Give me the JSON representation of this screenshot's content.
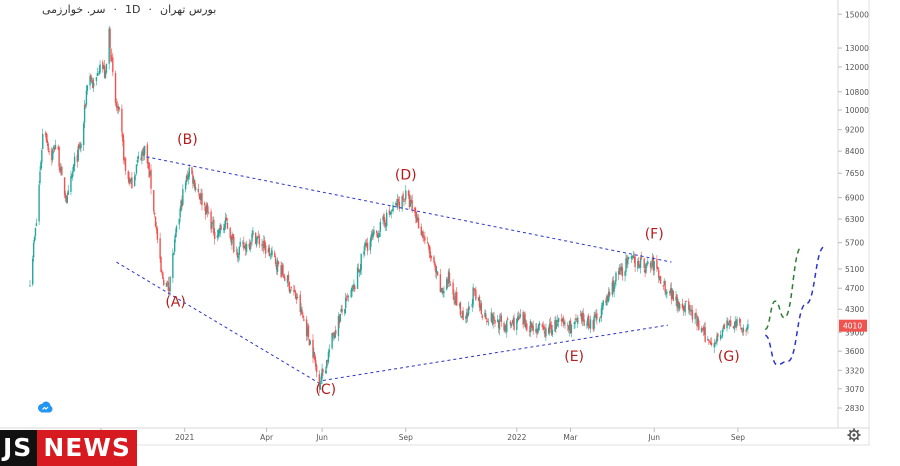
{
  "header": {
    "symbol_name": "سر. خوارزمی",
    "interval": "1D",
    "exchange": "بورس تهران"
  },
  "logo": {
    "part1": "JS",
    "part2": "NEWS"
  },
  "colors": {
    "up": "#26a69a",
    "down": "#ef5350",
    "trend": "#2b35c9",
    "projection_up": "#2e7d32",
    "label": "#b71c1c",
    "price_tag": "#ef5350"
  },
  "chart_data": {
    "type": "candlestick",
    "title": "",
    "xlabel": "",
    "ylabel": "",
    "y_scale": "log",
    "ylim": [
      2600,
      15800
    ],
    "xlim": [
      "2020-07-15",
      "2022-12-20"
    ],
    "y_ticks": [
      15000,
      13000,
      12000,
      10800,
      10000,
      9200,
      8400,
      7650,
      6900,
      6300,
      5700,
      5100,
      4700,
      4300,
      3900,
      3600,
      3320,
      3070,
      2830
    ],
    "x_ticks": [
      {
        "date": "2020-10-01",
        "label": "Oct"
      },
      {
        "date": "2021-01-01",
        "label": "2021"
      },
      {
        "date": "2021-04-01",
        "label": "Apr"
      },
      {
        "date": "2021-06-01",
        "label": "Jun"
      },
      {
        "date": "2021-09-01",
        "label": "Sep"
      },
      {
        "date": "2022-01-01",
        "label": "2022"
      },
      {
        "date": "2022-03-01",
        "label": "Mar"
      },
      {
        "date": "2022-06-01",
        "label": "Jun"
      },
      {
        "date": "2022-09-01",
        "label": "Sep"
      }
    ],
    "last_price": 4010,
    "price_path": [
      [
        "2020-07-15",
        4900
      ],
      [
        "2020-07-22",
        6200
      ],
      [
        "2020-07-30",
        9500
      ],
      [
        "2020-08-07",
        8100
      ],
      [
        "2020-08-13",
        8800
      ],
      [
        "2020-08-19",
        7400
      ],
      [
        "2020-08-25",
        6800
      ],
      [
        "2020-09-02",
        8000
      ],
      [
        "2020-09-10",
        8700
      ],
      [
        "2020-09-17",
        11800
      ],
      [
        "2020-09-24",
        10900
      ],
      [
        "2020-09-30",
        12400
      ],
      [
        "2020-10-06",
        11500
      ],
      [
        "2020-10-10",
        14000
      ],
      [
        "2020-10-16",
        10400
      ],
      [
        "2020-10-22",
        9600
      ],
      [
        "2020-10-28",
        7700
      ],
      [
        "2020-11-03",
        7300
      ],
      [
        "2020-11-12",
        8200
      ],
      [
        "2020-11-18",
        8500
      ],
      [
        "2020-11-24",
        7500
      ],
      [
        "2020-11-30",
        6200
      ],
      [
        "2020-12-06",
        5000
      ],
      [
        "2020-12-14",
        4700
      ],
      [
        "2020-12-22",
        5800
      ],
      [
        "2020-12-30",
        7000
      ],
      [
        "2021-01-06",
        7800
      ],
      [
        "2021-01-14",
        7200
      ],
      [
        "2021-01-24",
        6600
      ],
      [
        "2021-02-04",
        5900
      ],
      [
        "2021-02-16",
        6200
      ],
      [
        "2021-02-26",
        5500
      ],
      [
        "2021-03-08",
        5600
      ],
      [
        "2021-03-18",
        5900
      ],
      [
        "2021-03-29",
        5600
      ],
      [
        "2021-04-10",
        5300
      ],
      [
        "2021-04-22",
        4900
      ],
      [
        "2021-05-04",
        4500
      ],
      [
        "2021-05-14",
        4000
      ],
      [
        "2021-05-22",
        3600
      ],
      [
        "2021-05-28",
        3150
      ],
      [
        "2021-06-05",
        3400
      ],
      [
        "2021-06-14",
        3900
      ],
      [
        "2021-06-24",
        4300
      ],
      [
        "2021-07-06",
        4700
      ],
      [
        "2021-07-18",
        5600
      ],
      [
        "2021-07-30",
        5900
      ],
      [
        "2021-08-10",
        6300
      ],
      [
        "2021-08-22",
        6700
      ],
      [
        "2021-09-01",
        6950
      ],
      [
        "2021-09-10",
        6500
      ],
      [
        "2021-09-20",
        5900
      ],
      [
        "2021-10-01",
        5200
      ],
      [
        "2021-10-10",
        4600
      ],
      [
        "2021-10-18",
        4900
      ],
      [
        "2021-10-26",
        4500
      ],
      [
        "2021-11-05",
        4000
      ],
      [
        "2021-11-14",
        4600
      ],
      [
        "2021-11-26",
        4200
      ],
      [
        "2021-12-08",
        4100
      ],
      [
        "2021-12-20",
        4000
      ],
      [
        "2022-01-04",
        4100
      ],
      [
        "2022-01-18",
        4000
      ],
      [
        "2022-02-01",
        3900
      ],
      [
        "2022-02-15",
        4050
      ],
      [
        "2022-03-01",
        4000
      ],
      [
        "2022-03-15",
        4100
      ],
      [
        "2022-03-26",
        4050
      ],
      [
        "2022-04-08",
        4400
      ],
      [
        "2022-04-20",
        4900
      ],
      [
        "2022-05-01",
        5200
      ],
      [
        "2022-05-12",
        5300
      ],
      [
        "2022-05-22",
        5150
      ],
      [
        "2022-06-01",
        5200
      ],
      [
        "2022-06-10",
        4800
      ],
      [
        "2022-06-20",
        4600
      ],
      [
        "2022-06-30",
        4400
      ],
      [
        "2022-07-10",
        4300
      ],
      [
        "2022-07-20",
        4000
      ],
      [
        "2022-07-30",
        3750
      ],
      [
        "2022-08-08",
        3800
      ],
      [
        "2022-08-18",
        4000
      ],
      [
        "2022-08-28",
        4050
      ],
      [
        "2022-09-05",
        3950
      ],
      [
        "2022-09-12",
        4010
      ]
    ],
    "trendlines": [
      {
        "name": "upper",
        "from": [
          "2020-11-20",
          8200
        ],
        "to": [
          "2022-06-20",
          5250
        ]
      },
      {
        "name": "lower-left",
        "from": [
          "2020-10-18",
          5250
        ],
        "to": [
          "2021-05-28",
          3150
        ]
      },
      {
        "name": "lower-right",
        "from": [
          "2021-06-02",
          3180
        ],
        "to": [
          "2022-06-16",
          4020
        ]
      }
    ],
    "projections": [
      {
        "name": "green-path",
        "color": "projection_up",
        "points": [
          [
            "2022-10-01",
            3950
          ],
          [
            "2022-10-12",
            4450
          ],
          [
            "2022-10-22",
            4150
          ],
          [
            "2022-11-10",
            5600
          ]
        ]
      },
      {
        "name": "blue-path",
        "color": "trend",
        "points": [
          [
            "2022-10-01",
            3850
          ],
          [
            "2022-10-14",
            3400
          ],
          [
            "2022-10-26",
            3450
          ],
          [
            "2022-11-15",
            4400
          ],
          [
            "2022-12-05",
            5600
          ]
        ]
      }
    ],
    "annotations": [
      {
        "label": "(A)",
        "x": "2020-12-22",
        "y": 4350
      },
      {
        "label": "(B)",
        "x": "2021-01-04",
        "y": 8650
      },
      {
        "label": "(C)",
        "x": "2021-06-05",
        "y": 3000
      },
      {
        "label": "(D)",
        "x": "2021-09-01",
        "y": 7450
      },
      {
        "label": "(E)",
        "x": "2022-03-05",
        "y": 3450
      },
      {
        "label": "(F)",
        "x": "2022-06-01",
        "y": 5800
      },
      {
        "label": "(G)",
        "x": "2022-08-22",
        "y": 3450
      }
    ]
  }
}
